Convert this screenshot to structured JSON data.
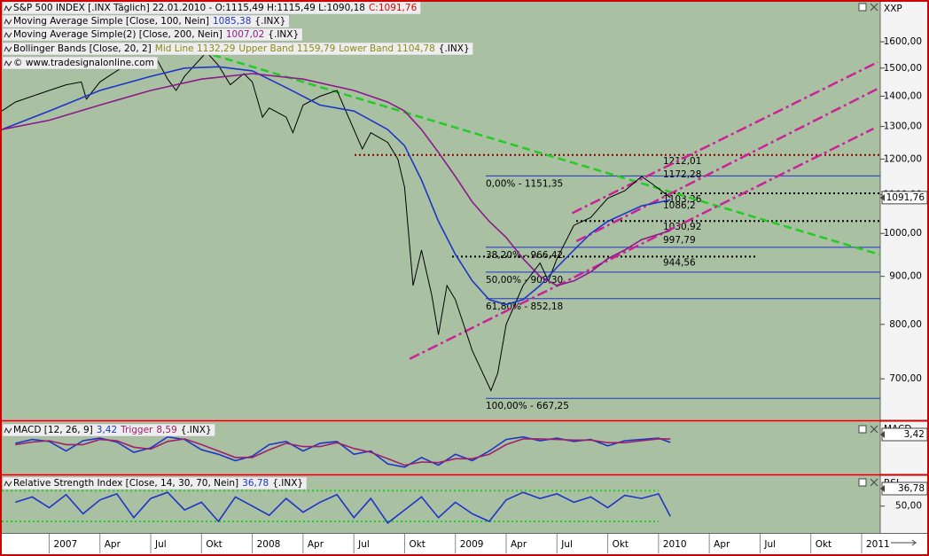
{
  "chart_data": [
    {
      "type": "line",
      "log_scale": true,
      "copyright": "© www.tradesignalonline.com",
      "axis_label": "XXP",
      "bollinger": {
        "name": "Bollinger Bands [Close, 20, 2]",
        "labels": [
          "Mid Line 1132,29",
          "Upper Band 1159,79",
          "Lower Band 1104,78"
        ],
        "source": "{.INX}",
        "color": "#8a8a1e"
      },
      "xlim": [
        -2.8,
        49.1
      ],
      "xticks": [
        {
          "value": 0,
          "label": "2007"
        },
        {
          "value": 3,
          "label": "Apr"
        },
        {
          "value": 6,
          "label": "Jul"
        },
        {
          "value": 9,
          "label": "Okt"
        },
        {
          "value": 12,
          "label": "2008"
        },
        {
          "value": 15,
          "label": "Apr"
        },
        {
          "value": 18,
          "label": "Jul"
        },
        {
          "value": 21,
          "label": "Okt"
        },
        {
          "value": 24,
          "label": "2009"
        },
        {
          "value": 27,
          "label": "Apr"
        },
        {
          "value": 30,
          "label": "Jul"
        },
        {
          "value": 33,
          "label": "Okt"
        },
        {
          "value": 36,
          "label": "2010"
        },
        {
          "value": 39,
          "label": "Apr"
        },
        {
          "value": 42,
          "label": "Jul"
        },
        {
          "value": 45,
          "label": "Okt"
        },
        {
          "value": 48,
          "label": "2011"
        }
      ],
      "ylim": [
        635,
        1765
      ],
      "yticks": [
        {
          "value": 700,
          "label": "700,00"
        },
        {
          "value": 800,
          "label": "800,00"
        },
        {
          "value": 900,
          "label": "900,00"
        },
        {
          "value": 1000,
          "label": "1000,00"
        },
        {
          "value": 1100,
          "label": "1100,00"
        },
        {
          "value": 1200,
          "label": "1200,00"
        },
        {
          "value": 1300,
          "label": "1300,00"
        },
        {
          "value": 1400,
          "label": "1400,00"
        },
        {
          "value": 1500,
          "label": "1500,00"
        },
        {
          "value": 1600,
          "label": "1600,00"
        }
      ],
      "series": [
        {
          "name": "S&P 500 INDEX [.INX  Täglich] 22.01.2010 - O:1115,49 H:1115,49 L:1090,18",
          "close_label": "C:1091,76",
          "last_label": "1091,76",
          "color": "#000000",
          "x": [
            -2.8,
            -2,
            -1,
            0,
            1,
            1.9,
            2.2,
            3,
            4,
            5,
            5.5,
            6.3,
            7,
            7.5,
            8,
            9.3,
            10,
            10.7,
            11.5,
            12,
            12.6,
            13,
            14,
            14.4,
            15,
            16,
            17,
            18,
            18.5,
            19,
            20,
            20.6,
            21,
            21.5,
            22,
            22.6,
            23,
            23.5,
            24,
            25,
            26.1,
            26.5,
            27,
            28,
            29,
            29.5,
            30,
            31,
            32,
            33,
            34,
            35,
            35.6,
            36.7
          ],
          "values": [
            1350,
            1380,
            1400,
            1420,
            1440,
            1450,
            1390,
            1450,
            1490,
            1530,
            1500,
            1540,
            1460,
            1420,
            1470,
            1560,
            1510,
            1440,
            1480,
            1450,
            1330,
            1360,
            1330,
            1280,
            1370,
            1400,
            1420,
            1290,
            1230,
            1280,
            1250,
            1200,
            1120,
            880,
            960,
            860,
            780,
            880,
            850,
            750,
            680,
            710,
            800,
            880,
            930,
            890,
            940,
            1020,
            1040,
            1090,
            1110,
            1150,
            1130,
            1091.76
          ]
        },
        {
          "name": "Moving Average Simple [Close, 100, Nein]",
          "last_label": "1085,38",
          "source": "{.INX}",
          "color": "#1f35c8",
          "x": [
            -2.8,
            0,
            3,
            6,
            8,
            10,
            12,
            14,
            16,
            18,
            19,
            20,
            21,
            22,
            23,
            24,
            25,
            26,
            27,
            28,
            29,
            30,
            31,
            32,
            33,
            34,
            35,
            36.7
          ],
          "values": [
            1290,
            1350,
            1420,
            1470,
            1500,
            1505,
            1490,
            1430,
            1370,
            1350,
            1320,
            1290,
            1240,
            1140,
            1030,
            950,
            890,
            850,
            840,
            850,
            880,
            920,
            960,
            1000,
            1030,
            1050,
            1070,
            1085.38
          ]
        },
        {
          "name": "Moving Average Simple(2) [Close, 200, Nein]",
          "last_label": "1007,02",
          "source": "{.INX}",
          "color": "#8b1a8b",
          "x": [
            -2.8,
            0,
            3,
            6,
            9,
            12,
            15,
            18,
            20,
            21,
            22,
            23,
            24,
            25,
            26,
            27,
            28,
            29,
            30,
            31,
            32,
            33,
            34,
            35,
            36.7
          ],
          "values": [
            1290,
            1320,
            1370,
            1420,
            1460,
            1480,
            1460,
            1420,
            1380,
            1350,
            1290,
            1220,
            1150,
            1080,
            1030,
            990,
            940,
            900,
            880,
            890,
            910,
            940,
            960,
            985,
            1007.02
          ]
        }
      ],
      "levels": [
        {
          "value": 1151.35,
          "label": "0,00% - 1151,35",
          "color": "#1f35c8",
          "style": "solid"
        },
        {
          "value": 966.42,
          "label": "38,20% - 966,42",
          "color": "#1f35c8",
          "style": "solid"
        },
        {
          "value": 909.3,
          "label": "50,00% - 909,30",
          "color": "#1f35c8",
          "style": "solid"
        },
        {
          "value": 852.18,
          "label": "61,80% - 852,18",
          "color": "#1f35c8",
          "style": "solid"
        },
        {
          "value": 667.25,
          "label": "100,00% - 667,25",
          "color": "#1f35c8",
          "style": "solid"
        },
        {
          "value": 1212.01,
          "label": "1212,01",
          "color": "#8b0000",
          "style": "dotted"
        },
        {
          "value": 1172.28,
          "label": "1172,28",
          "color": "#c04080",
          "style": "none"
        },
        {
          "value": 1103.36,
          "label": "1103,36",
          "color": "#000000",
          "style": "dotted"
        },
        {
          "value": 1086.2,
          "label": "1086,2",
          "color": "#8b0000",
          "style": "none"
        },
        {
          "value": 1030.92,
          "label": "1030,92",
          "color": "#000000",
          "style": "dotted"
        },
        {
          "value": 997.79,
          "label": "997,79",
          "color": "#c04080",
          "style": "none"
        },
        {
          "value": 944.56,
          "label": "944,56",
          "color": "#000000",
          "style": "dotted"
        }
      ],
      "trendlines": [
        {
          "x": [
            9.69,
            49.1
          ],
          "values": [
            1549,
            949
          ],
          "color": "#22cc22",
          "style": "dash"
        },
        {
          "x": [
            30.9,
            48.95
          ],
          "values": [
            1051,
            1522
          ],
          "color": "#cc2299",
          "style": "dashdot"
        },
        {
          "x": [
            31.15,
            48.95
          ],
          "values": [
            981,
            1426
          ],
          "color": "#cc2299",
          "style": "dashdot"
        },
        {
          "x": [
            21.3,
            48.7
          ],
          "values": [
            735,
            1293
          ],
          "color": "#cc2299",
          "style": "dashdot"
        }
      ]
    },
    {
      "type": "line",
      "axis_label": "MACD",
      "xlim": [
        -2.8,
        49.1
      ],
      "ylim": [
        -45,
        35
      ],
      "series": [
        {
          "name": "MACD [12, 26, 9]",
          "last_label": "3,42",
          "color": "#1f35c8",
          "x": [
            -2,
            -1,
            0,
            1,
            2,
            3,
            4,
            5,
            6,
            7,
            8,
            9,
            10,
            11,
            12,
            13,
            14,
            15,
            16,
            17,
            18,
            19,
            20,
            21,
            22,
            23,
            24,
            25,
            26,
            27,
            28,
            29,
            30,
            31,
            32,
            33,
            34,
            35,
            36,
            36.7
          ],
          "values": [
            2,
            8,
            5,
            -10,
            6,
            10,
            4,
            -12,
            -5,
            12,
            8,
            -8,
            -15,
            -25,
            -18,
            0,
            5,
            -10,
            2,
            5,
            -15,
            -10,
            -30,
            -35,
            -20,
            -32,
            -15,
            -25,
            -10,
            8,
            12,
            6,
            10,
            5,
            8,
            -2,
            6,
            8,
            10,
            3.42
          ]
        },
        {
          "name": "Trigger",
          "last_label": "8,59",
          "source": "{.INX}",
          "color": "#a0206a",
          "x": [
            -2,
            -1,
            0,
            1,
            2,
            3,
            4,
            5,
            6,
            7,
            8,
            9,
            10,
            11,
            12,
            13,
            14,
            15,
            16,
            17,
            18,
            19,
            20,
            21,
            22,
            23,
            24,
            25,
            26,
            27,
            28,
            29,
            30,
            31,
            32,
            33,
            34,
            35,
            36,
            36.7
          ],
          "values": [
            0,
            4,
            6,
            0,
            0,
            8,
            6,
            -4,
            -7,
            5,
            9,
            0,
            -10,
            -20,
            -20,
            -8,
            2,
            -3,
            -3,
            3,
            -6,
            -12,
            -22,
            -32,
            -27,
            -28,
            -22,
            -22,
            -15,
            0,
            9,
            9,
            8,
            7,
            7,
            3,
            3,
            6,
            9,
            8.59
          ]
        }
      ]
    },
    {
      "type": "line",
      "axis_label": "RSI",
      "xlim": [
        -2.8,
        49.1
      ],
      "ylim": [
        15,
        89
      ],
      "yticks": [
        {
          "value": 50,
          "label": "50,00"
        }
      ],
      "bands": [
        30,
        70
      ],
      "band_color": "#22cc22",
      "series": [
        {
          "name": "Relative Strength Index [Close, 14, 30, 70, Nein]",
          "last_label": "36,78",
          "source": "{.INX}",
          "color": "#1f35c8",
          "x": [
            -2,
            -1,
            0,
            1,
            2,
            3,
            4,
            5,
            6,
            7,
            8,
            9,
            10,
            11,
            12,
            13,
            14,
            15,
            16,
            17,
            18,
            19,
            20,
            21,
            22,
            23,
            24,
            25,
            26,
            27,
            28,
            29,
            30,
            31,
            32,
            33,
            34,
            35,
            36,
            36.7
          ],
          "values": [
            55,
            62,
            48,
            65,
            40,
            58,
            66,
            35,
            60,
            68,
            45,
            55,
            30,
            62,
            50,
            38,
            60,
            42,
            55,
            65,
            35,
            60,
            28,
            45,
            62,
            35,
            55,
            40,
            30,
            58,
            68,
            60,
            66,
            55,
            62,
            48,
            64,
            60,
            66,
            36.78
          ]
        }
      ]
    }
  ]
}
